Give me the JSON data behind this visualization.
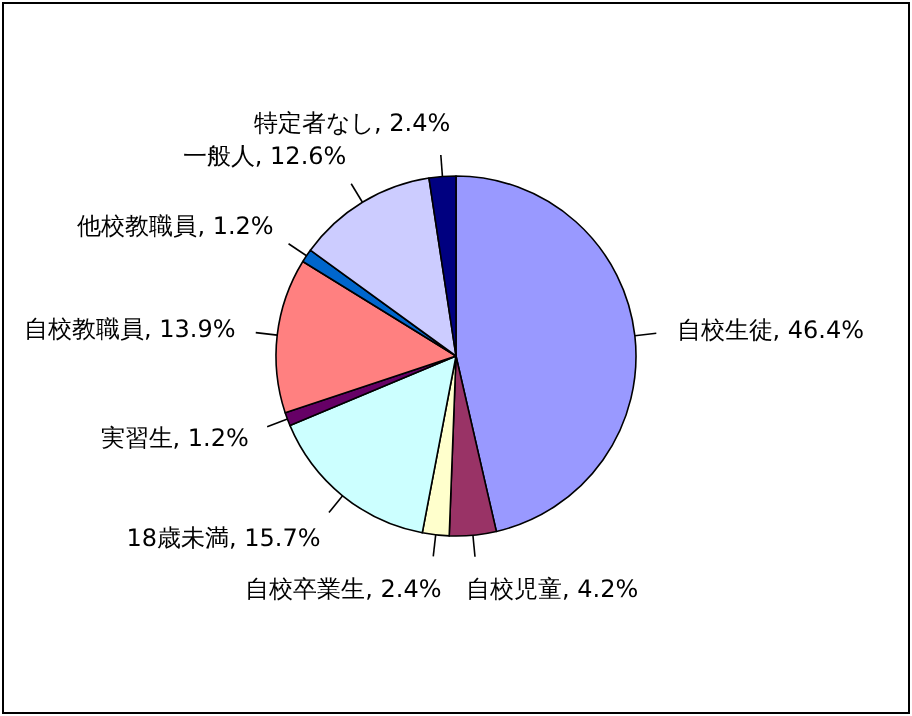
{
  "chart_data": {
    "type": "pie",
    "categories": [
      "自校生徒",
      "自校児童",
      "自校卒業生",
      "18歳未満",
      "実習生",
      "自校教職員",
      "他校教職員",
      "一般人",
      "特定者なし"
    ],
    "values": [
      46.4,
      4.2,
      2.4,
      15.7,
      1.2,
      13.9,
      1.2,
      12.6,
      2.4
    ],
    "value_labels": [
      "46.4%",
      "4.2%",
      "2.4%",
      "15.7%",
      "1.2%",
      "13.9%",
      "1.2%",
      "12.6%",
      "2.4%"
    ],
    "colors": [
      "#9999ff",
      "#993366",
      "#ffffcc",
      "#ccffff",
      "#660066",
      "#ff8080",
      "#0066cc",
      "#ccccff",
      "#000080"
    ]
  }
}
